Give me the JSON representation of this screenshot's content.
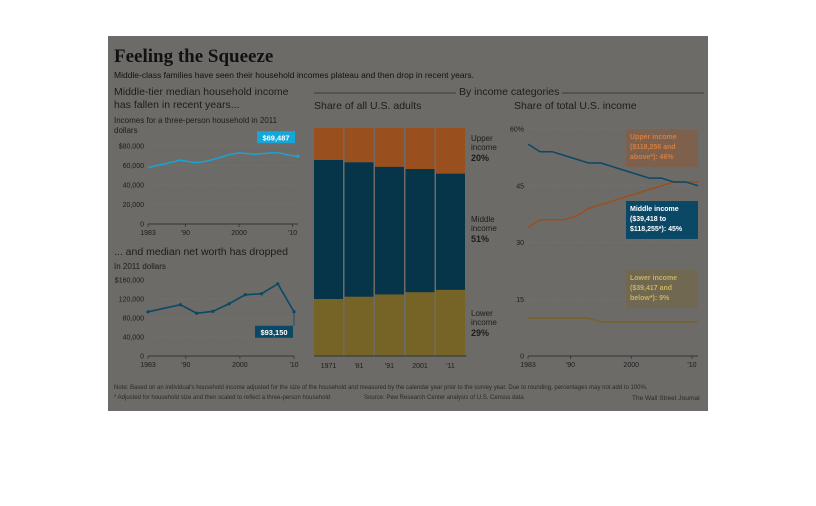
{
  "header": {
    "title": "Feeling the Squeeze",
    "subtitle": "Middle-class families have seen their household incomes plateau and then drop in recent years."
  },
  "colors": {
    "background": "#6d6b67",
    "upper": "#9a4f1e",
    "middle": "#063448",
    "lower": "#766326",
    "line_income": "#14a7d9",
    "line_worth": "#0a4866",
    "label_upper": "#d27e42",
    "label_lower": "#c8b263"
  },
  "section_header": "By income categories",
  "chart_data": [
    {
      "id": "income",
      "type": "line",
      "title": "Middle-tier median household income has fallen in recent years...",
      "ylabel": "Incomes for a three-person household in 2011 dollars",
      "x": [
        1983,
        1984,
        1985,
        1986,
        1987,
        1988,
        1989,
        1990,
        1991,
        1992,
        1993,
        1994,
        1995,
        1996,
        1997,
        1998,
        1999,
        2000,
        2001,
        2002,
        2003,
        2004,
        2005,
        2006,
        2007,
        2008,
        2009,
        2010,
        2011
      ],
      "values": [
        57500,
        59000,
        60500,
        61500,
        63000,
        64000,
        65500,
        64500,
        63500,
        63000,
        63500,
        64500,
        66000,
        67500,
        69000,
        71000,
        72000,
        73000,
        72500,
        72000,
        71500,
        72000,
        72500,
        73000,
        73000,
        72500,
        71000,
        70000,
        69487
      ],
      "y_ticks": [
        "$80,000",
        "60,000",
        "40,000",
        "20,000",
        "0"
      ],
      "x_ticks": [
        "1983",
        "'90",
        "2000",
        "'10"
      ],
      "ylim": [
        0,
        80000
      ],
      "callout": "$69,487"
    },
    {
      "id": "networth",
      "type": "line",
      "title": "... and median net worth has dropped",
      "ylabel": "In 2011 dollars",
      "x": [
        1983,
        1989,
        1992,
        1995,
        1998,
        2001,
        2004,
        2007,
        2010
      ],
      "values": [
        93000,
        108000,
        90000,
        94000,
        110000,
        129000,
        131000,
        152000,
        93150
      ],
      "y_ticks": [
        "$160,000",
        "120,000",
        "80,000",
        "40,000",
        "0"
      ],
      "x_ticks": [
        "1983",
        "'90",
        "2000",
        "'10"
      ],
      "ylim": [
        0,
        160000
      ],
      "callout": "$93,150"
    },
    {
      "id": "adults",
      "type": "bar",
      "title": "Share of all U.S. adults",
      "categories": [
        "1971",
        "'81",
        "'91",
        "2001",
        "'11"
      ],
      "series": [
        {
          "name": "Lower income",
          "values": [
            25,
            26,
            27,
            28,
            29
          ]
        },
        {
          "name": "Middle income",
          "values": [
            61,
            59,
            56,
            54,
            51
          ]
        },
        {
          "name": "Upper income",
          "values": [
            14,
            15,
            17,
            18,
            20
          ]
        }
      ],
      "labels": [
        {
          "name": "Upper income",
          "pct": "20%"
        },
        {
          "name": "Middle income",
          "pct": "51%"
        },
        {
          "name": "Lower income",
          "pct": "29%"
        }
      ]
    },
    {
      "id": "share",
      "type": "line",
      "title": "Share of total U.S. income",
      "y_ticks": [
        "60%",
        "45",
        "30",
        "15",
        "0"
      ],
      "x_ticks": [
        "1983",
        "'90",
        "2000",
        "'10"
      ],
      "ylim": [
        0,
        60
      ],
      "x": [
        1983,
        1985,
        1987,
        1989,
        1991,
        1993,
        1995,
        1997,
        1999,
        2001,
        2003,
        2005,
        2007,
        2009,
        2011
      ],
      "series": [
        {
          "name": "Upper income",
          "values": [
            34,
            36,
            36,
            36,
            37,
            39,
            40,
            41,
            42,
            43,
            44,
            45,
            46,
            46,
            46
          ]
        },
        {
          "name": "Middle income",
          "values": [
            56,
            54,
            54,
            53,
            52,
            51,
            51,
            50,
            49,
            48,
            47,
            47,
            46,
            46,
            45
          ]
        },
        {
          "name": "Lower income",
          "values": [
            10,
            10,
            10,
            10,
            10,
            10,
            9,
            9,
            9,
            9,
            9,
            9,
            9,
            9,
            9
          ]
        }
      ],
      "labels": {
        "upper": [
          "Upper income",
          "($118,256 and",
          "above*): 46%"
        ],
        "middle": [
          "Middle income",
          "($39,418 to",
          "$118,255*): 45%"
        ],
        "lower": [
          "Lower income",
          "($39,417 and",
          "below*): 9%"
        ]
      }
    }
  ],
  "footer": {
    "note": "Note: Based on an individual's household income adjusted for the size of the household and measured by the calendar year prior to the survey year. Due to rounding, percentages may not add to 100%.",
    "footnote": "* Adjusted for household size and then scaled to reflect a three-person household",
    "source": "Source: Pew Research Center analysis of U.S. Census data",
    "credit": "The Wall Street Journal"
  }
}
